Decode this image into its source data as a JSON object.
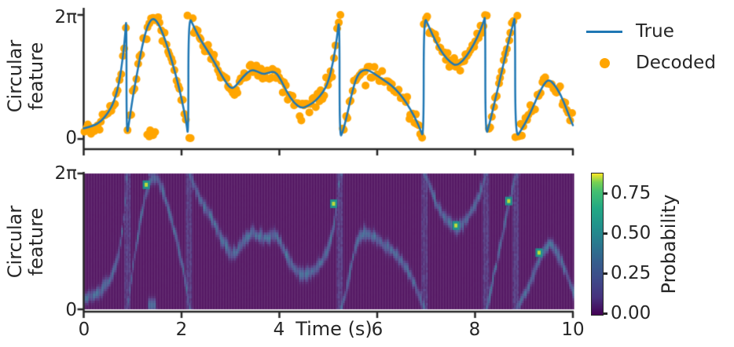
{
  "figure": {
    "background": "#ffffff",
    "text_color": "#262626",
    "axis_color": "#262626"
  },
  "labels": {
    "top_ylabel_line1": "Circular",
    "top_ylabel_line2": "feature",
    "bottom_ylabel_line1": "Circular",
    "bottom_ylabel_line2": "feature",
    "xlabel": "Time (s)"
  },
  "axes": {
    "top": {
      "ytick_top": "2π",
      "ytick_bottom": "0"
    },
    "bottom": {
      "ytick_top": "2π",
      "ytick_bottom": "0",
      "xticks": [
        "0",
        "2",
        "4",
        "6",
        "8",
        "10"
      ]
    }
  },
  "legend": {
    "items": [
      {
        "label": "True",
        "color": "#1f77b4",
        "marker": "line"
      },
      {
        "label": "Decoded",
        "color": "#ffa500",
        "marker": "dot"
      }
    ]
  },
  "colorbar": {
    "label": "Probability",
    "tick_labels": [
      "0.75",
      "0.50",
      "0.25",
      "0.00"
    ],
    "tick_values": [
      0.75,
      0.5,
      0.25,
      0.0
    ],
    "vmax": 0.88,
    "vmin": 0.0
  },
  "colors": {
    "true_line": "#1f77b4",
    "decoded_dot": "#ffa500",
    "viridis_stops": [
      [
        0.0,
        "#440154"
      ],
      [
        0.125,
        "#46327e"
      ],
      [
        0.25,
        "#3e4a89"
      ],
      [
        0.375,
        "#355e8d"
      ],
      [
        0.5,
        "#2a788e"
      ],
      [
        0.625,
        "#21918c"
      ],
      [
        0.75,
        "#22a884"
      ],
      [
        0.875,
        "#44bf70"
      ],
      [
        0.94,
        "#7ad151"
      ],
      [
        1.0,
        "#fde725"
      ]
    ]
  },
  "chart_data": [
    {
      "type": "line",
      "title": "",
      "xlabel": "Time (s)",
      "ylabel": "Circular feature",
      "xlim": [
        0,
        10
      ],
      "ylim_units_2pi": [
        0,
        1
      ],
      "ytick_values_2pi": [
        0,
        1
      ],
      "ytick_labels": [
        "0",
        "2π"
      ],
      "xtick_values": [
        0,
        2,
        4,
        6,
        8,
        10
      ],
      "legend_position": "outside-right-top",
      "series": [
        {
          "name": "True",
          "style": "line",
          "color": "#1f77b4",
          "units": "fraction of 2π",
          "segments": [
            [
              [
                0.0,
                0.085
              ],
              [
                0.2,
                0.105
              ],
              [
                0.35,
                0.14
              ],
              [
                0.5,
                0.21
              ],
              [
                0.62,
                0.3
              ],
              [
                0.72,
                0.44
              ],
              [
                0.8,
                0.65
              ],
              [
                0.85,
                0.85
              ],
              [
                0.875,
                1.0
              ]
            ],
            [
              [
                0.875,
                0.0
              ],
              [
                0.93,
                0.14
              ],
              [
                1.0,
                0.33
              ],
              [
                1.1,
                0.55
              ],
              [
                1.2,
                0.76
              ],
              [
                1.3,
                0.91
              ],
              [
                1.4,
                0.975
              ],
              [
                1.5,
                0.95
              ],
              [
                1.62,
                0.85
              ],
              [
                1.75,
                0.7
              ],
              [
                1.88,
                0.52
              ],
              [
                2.0,
                0.33
              ],
              [
                2.1,
                0.13
              ],
              [
                2.14,
                0.0
              ]
            ],
            [
              [
                2.14,
                1.0
              ],
              [
                2.25,
                0.905
              ],
              [
                2.4,
                0.79
              ],
              [
                2.55,
                0.7
              ],
              [
                2.7,
                0.6
              ],
              [
                2.85,
                0.49
              ],
              [
                3.0,
                0.405
              ],
              [
                3.1,
                0.42
              ],
              [
                3.25,
                0.5
              ],
              [
                3.42,
                0.56
              ],
              [
                3.55,
                0.545
              ],
              [
                3.67,
                0.52
              ],
              [
                3.78,
                0.535
              ],
              [
                3.9,
                0.545
              ],
              [
                4.0,
                0.5
              ],
              [
                4.15,
                0.38
              ],
              [
                4.3,
                0.29
              ],
              [
                4.45,
                0.245
              ],
              [
                4.6,
                0.27
              ],
              [
                4.75,
                0.31
              ],
              [
                4.9,
                0.38
              ],
              [
                5.0,
                0.46
              ],
              [
                5.1,
                0.62
              ],
              [
                5.18,
                0.82
              ],
              [
                5.23,
                1.0
              ]
            ],
            [
              [
                5.23,
                0.0
              ],
              [
                5.3,
                0.06
              ],
              [
                5.4,
                0.22
              ],
              [
                5.5,
                0.4
              ],
              [
                5.6,
                0.52
              ],
              [
                5.72,
                0.56
              ],
              [
                5.85,
                0.55
              ],
              [
                6.0,
                0.51
              ],
              [
                6.15,
                0.47
              ],
              [
                6.3,
                0.43
              ],
              [
                6.45,
                0.37
              ],
              [
                6.6,
                0.29
              ],
              [
                6.75,
                0.19
              ],
              [
                6.88,
                0.08
              ],
              [
                6.95,
                0.0
              ]
            ],
            [
              [
                6.95,
                1.0
              ],
              [
                7.05,
                0.91
              ],
              [
                7.2,
                0.78
              ],
              [
                7.35,
                0.68
              ],
              [
                7.5,
                0.615
              ],
              [
                7.62,
                0.59
              ],
              [
                7.75,
                0.63
              ],
              [
                7.9,
                0.71
              ],
              [
                8.05,
                0.82
              ],
              [
                8.18,
                0.95
              ],
              [
                8.21,
                1.0
              ]
            ],
            [
              [
                8.21,
                0.0
              ],
              [
                8.3,
                0.13
              ],
              [
                8.42,
                0.33
              ],
              [
                8.55,
                0.55
              ],
              [
                8.68,
                0.78
              ],
              [
                8.78,
                0.93
              ],
              [
                8.82,
                1.0
              ]
            ],
            [
              [
                8.82,
                0.0
              ],
              [
                8.95,
                0.075
              ],
              [
                9.1,
                0.18
              ],
              [
                9.25,
                0.32
              ],
              [
                9.4,
                0.44
              ],
              [
                9.5,
                0.48
              ],
              [
                9.6,
                0.45
              ],
              [
                9.75,
                0.36
              ],
              [
                9.88,
                0.23
              ],
              [
                10.0,
                0.11
              ]
            ]
          ],
          "wrap_times": [
            0.875,
            2.14,
            5.23,
            6.95,
            8.21,
            8.82
          ]
        },
        {
          "name": "Decoded",
          "style": "scatter",
          "color": "#ffa500",
          "generated_from": "True series plus circular noise",
          "dt": 0.034,
          "noise_sigma_frac_2pi": 0.03,
          "dot_radius_px": 5,
          "seed": 12,
          "outlier_cluster": [
            [
              1.3,
              0.035
            ],
            [
              1.34,
              0.02
            ],
            [
              1.38,
              0.05
            ],
            [
              1.42,
              0.03
            ],
            [
              1.46,
              0.055
            ],
            [
              1.36,
              0.07
            ]
          ]
        }
      ]
    },
    {
      "type": "heatmap",
      "xlabel": "Time (s)",
      "ylabel": "Circular feature",
      "x_range": [
        0,
        10
      ],
      "y_range_units_2pi": [
        0,
        1
      ],
      "colormap": "viridis",
      "vmin": 0.0,
      "vmax": 0.88,
      "colorbar_label": "Probability",
      "colorbar_tick_values": [
        0.0,
        0.25,
        0.5,
        0.75
      ],
      "description": "Posterior probability ridge following the True trajectory on a dark viridis-0 background",
      "ridge_amp_range": [
        0.16,
        0.4
      ],
      "ridge_sigma_frac_2pi": [
        0.018,
        0.035
      ],
      "wrap_streak_times": [
        0.875,
        2.14,
        5.23,
        6.95,
        8.21,
        8.82
      ],
      "bright_spots": [
        [
          1.27,
          0.92
        ],
        [
          5.1,
          0.78
        ],
        [
          7.6,
          0.62
        ],
        [
          8.68,
          0.8
        ],
        [
          9.3,
          0.42
        ]
      ],
      "extra_blob": {
        "t": 1.38,
        "v": 0.03,
        "amp": 0.3
      }
    }
  ]
}
